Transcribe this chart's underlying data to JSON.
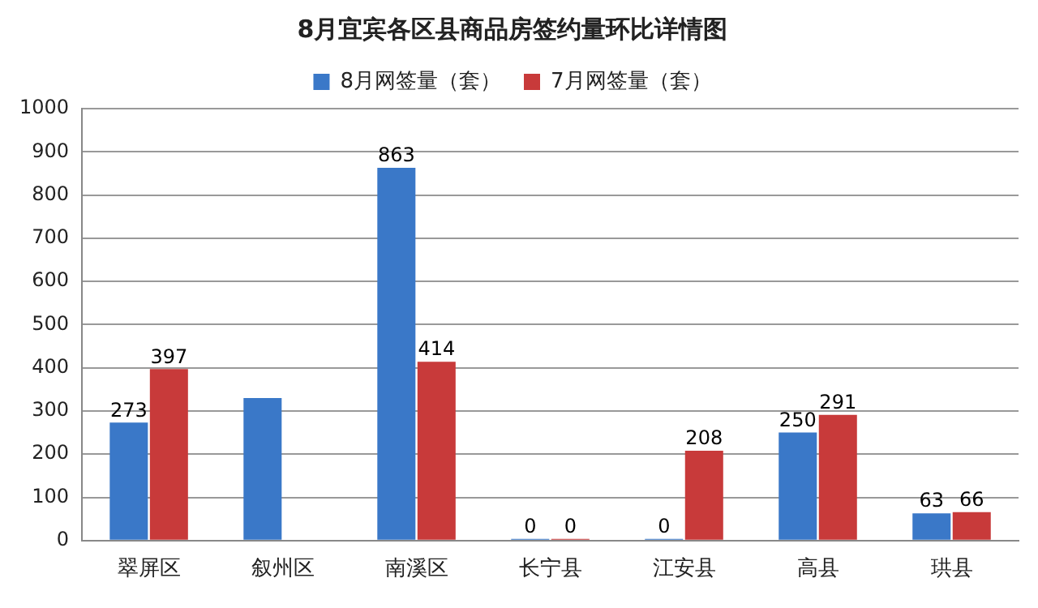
{
  "chart_data": {
    "type": "bar",
    "title": "8月宜宾各区县商品房签约量环比详情图",
    "categories": [
      "翠屏区",
      "叙州区",
      "南溪区",
      "长宁县",
      "江安县",
      "高县",
      "珙县"
    ],
    "series": [
      {
        "name": "8月网签量（套）",
        "color": "#3a78c8",
        "values": [
          273,
          330,
          863,
          0,
          0,
          250,
          63
        ],
        "value_labels": [
          "273",
          null,
          "863",
          "0",
          "0",
          "250",
          "63"
        ]
      },
      {
        "name": "7月网签量（套）",
        "color": "#c83a3a",
        "values": [
          397,
          null,
          414,
          0,
          208,
          291,
          66
        ],
        "value_labels": [
          "397",
          null,
          "414",
          "0",
          "208",
          "291",
          "66"
        ]
      }
    ],
    "ylim": [
      0,
      1000
    ],
    "yticks": [
      0,
      100,
      200,
      300,
      400,
      500,
      600,
      700,
      800,
      900,
      1000
    ],
    "grid": "y",
    "legend": "top"
  }
}
